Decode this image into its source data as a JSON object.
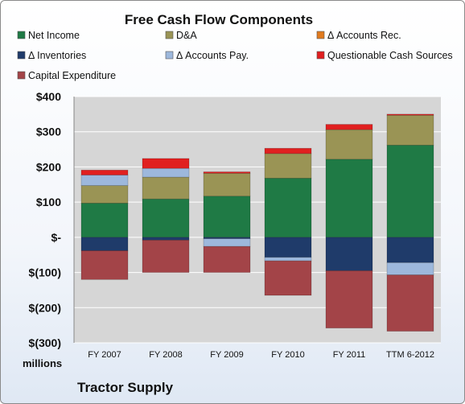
{
  "chart_data": {
    "type": "bar",
    "stacked": true,
    "title": "Free Cash Flow Components",
    "unit_label": "millions",
    "footer": "Tractor Supply",
    "categories": [
      "FY 2007",
      "FY 2008",
      "FY 2009",
      "FY 2010",
      "FY 2011",
      "TTM 6-2012"
    ],
    "ylim": [
      -300,
      400
    ],
    "yticks": [
      400,
      300,
      200,
      100,
      0,
      -100,
      -200,
      -300
    ],
    "ytick_labels": [
      "$400",
      "$300",
      "$200",
      "$100",
      "$-",
      "$(100)",
      "$(200)",
      "$(300)"
    ],
    "grid": true,
    "legend_position": "top",
    "series": [
      {
        "name": "Net Income",
        "color": "#1f7a45",
        "values": [
          97,
          109,
          117,
          168,
          222,
          262
        ]
      },
      {
        "name": "D&A",
        "color": "#9a9455",
        "values": [
          50,
          62,
          65,
          70,
          84,
          85
        ]
      },
      {
        "name": "Δ Accounts Rec.",
        "color": "#e07a1f",
        "values": [
          0,
          0,
          0,
          0,
          0,
          0
        ]
      },
      {
        "name": "Δ Inventories",
        "color": "#1f3b6a",
        "values": [
          -38,
          -8,
          -4,
          -57,
          -95,
          -72
        ]
      },
      {
        "name": "Δ Accounts Pay.",
        "color": "#9db8dc",
        "values": [
          30,
          25,
          -22,
          -10,
          0,
          -35
        ]
      },
      {
        "name": "Questionable Cash Sources",
        "color": "#e02020",
        "values": [
          14,
          28,
          4,
          15,
          15,
          3
        ]
      },
      {
        "name": "Capital Expenditure",
        "color": "#a34448",
        "values": [
          -82,
          -92,
          -74,
          -98,
          -163,
          -160
        ]
      }
    ]
  }
}
